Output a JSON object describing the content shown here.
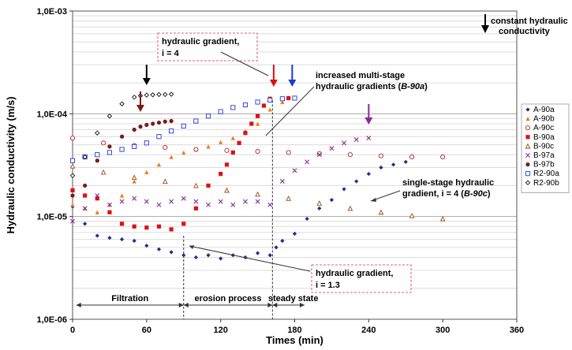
{
  "chart_data": {
    "type": "scatter",
    "x_axis": {
      "label": "Times (min)",
      "range": [
        0,
        360
      ],
      "ticks": [
        0,
        60,
        120,
        180,
        240,
        300,
        360
      ],
      "tick_labels": [
        "0",
        "60",
        "120",
        "180",
        "240",
        "300",
        "360"
      ]
    },
    "y_axis": {
      "label": "Hydraulic conductivity (m/s)",
      "scale": "log",
      "range": [
        1e-06,
        0.001
      ],
      "ticks": [
        1e-06,
        1e-05,
        0.0001,
        0.001
      ],
      "tick_labels": [
        "1,0E-06",
        "1,0E-05",
        "1,0E-04",
        "1,0E-03"
      ]
    },
    "grid": "horizontal",
    "legend_position": "right",
    "series": [
      {
        "name": "A-90a",
        "color": "#1f2f8f",
        "marker": "diamond",
        "x": [
          0,
          10,
          20,
          30,
          40,
          50,
          60,
          70,
          80,
          90,
          100,
          110,
          120,
          130,
          140,
          150,
          160,
          165,
          170,
          180,
          190,
          200,
          210,
          220,
          230,
          240,
          250,
          260,
          270
        ],
        "y": [
          1.25e-05,
          8.5e-06,
          6.5e-06,
          6.2e-06,
          6e-06,
          5.8e-06,
          5.2e-06,
          4.8e-06,
          4.5e-06,
          4.2e-06,
          4e-06,
          4.2e-06,
          3.9e-06,
          4.2e-06,
          4e-06,
          4.4e-06,
          4.2e-06,
          5e-06,
          5.8e-06,
          6.8e-06,
          9.5e-06,
          1.2e-05,
          1.45e-05,
          1.85e-05,
          2.2e-05,
          2.6e-05,
          3e-05,
          3.2e-05,
          3.4e-05
        ]
      },
      {
        "name": "A-90b",
        "color": "#f07a10",
        "marker": "triangle",
        "x": [
          0,
          10,
          20,
          30,
          40,
          50,
          60,
          70,
          80,
          90,
          100,
          110,
          120,
          130,
          140,
          150,
          160,
          170
        ],
        "y": [
          1.3e-05,
          1.2e-05,
          1.1e-05,
          1.3e-05,
          1.6e-05,
          2.2e-05,
          2.7e-05,
          3.2e-05,
          3.8e-05,
          4.2e-05,
          4.5e-05,
          4.8e-05,
          5.3e-05,
          5.8e-05,
          6.8e-05,
          8e-05,
          0.00011,
          0.00013
        ]
      },
      {
        "name": "A-90c",
        "color": "#b82020",
        "marker": "circle",
        "x": [
          0,
          25,
          50,
          75,
          100,
          125,
          150,
          175,
          200,
          225,
          250,
          275,
          300
        ],
        "y": [
          5.8e-05,
          5.2e-05,
          4.9e-05,
          4.7e-05,
          4.5e-05,
          4.4e-05,
          4.3e-05,
          4.2e-05,
          4.1e-05,
          4e-05,
          3.9e-05,
          3.8e-05,
          3.8e-05
        ]
      },
      {
        "name": "B-90a",
        "color": "#e01010",
        "marker": "square",
        "x": [
          0,
          10,
          20,
          30,
          40,
          50,
          60,
          70,
          80,
          90,
          100,
          110,
          120,
          125,
          130,
          135,
          140,
          145,
          150,
          155,
          160,
          170,
          175
        ],
        "y": [
          1.8e-05,
          1.6e-05,
          1.5e-05,
          1.1e-05,
          8.5e-06,
          8e-06,
          7.8e-06,
          8e-06,
          7.5e-06,
          8.5e-06,
          1.2e-05,
          2e-05,
          2.6e-05,
          3.2e-05,
          4.2e-05,
          5.2e-05,
          6.5e-05,
          8e-05,
          9.5e-05,
          0.00012,
          0.00014,
          0.00014,
          0.000142
        ]
      },
      {
        "name": "B-90c",
        "color": "#9a4a10",
        "marker": "triangle-open",
        "x": [
          0,
          25,
          50,
          75,
          100,
          125,
          150,
          175,
          200,
          225,
          250,
          275,
          300
        ],
        "y": [
          3.1e-05,
          2.7e-05,
          2.4e-05,
          2.2e-05,
          2e-05,
          1.8e-05,
          1.65e-05,
          1.5e-05,
          1.35e-05,
          1.2e-05,
          1.1e-05,
          1.02e-05,
          9.5e-06
        ]
      },
      {
        "name": "B-97a",
        "color": "#8a2a9a",
        "marker": "x",
        "x": [
          0,
          10,
          20,
          30,
          40,
          50,
          60,
          70,
          80,
          90,
          100,
          110,
          120,
          130,
          140,
          150,
          160,
          170,
          180,
          190,
          200,
          210,
          220,
          230,
          240
        ],
        "y": [
          9e-06,
          1.2e-05,
          1.6e-05,
          1.3e-05,
          1.4e-05,
          1.5e-05,
          1.4e-05,
          1.3e-05,
          1.4e-05,
          1.5e-05,
          1.4e-05,
          1.3e-05,
          1.4e-05,
          1.3e-05,
          1.4e-05,
          1.4e-05,
          1.3e-05,
          2.2e-05,
          2.8e-05,
          3.4e-05,
          4e-05,
          4.6e-05,
          5.2e-05,
          5.6e-05,
          5.8e-05
        ]
      },
      {
        "name": "B-97b",
        "color": "#7a1a1a",
        "marker": "circle-filled",
        "x": [
          0,
          10,
          20,
          30,
          40,
          50,
          55,
          60,
          65,
          70,
          75,
          80
        ],
        "y": [
          1.6e-05,
          2e-05,
          3.5e-05,
          4.8e-05,
          6e-05,
          7e-05,
          7.5e-05,
          7.8e-05,
          8e-05,
          8.2e-05,
          8.4e-05,
          8.5e-05
        ]
      },
      {
        "name": "R2-90a",
        "color": "#1a3ad0",
        "marker": "square-open",
        "x": [
          0,
          10,
          20,
          30,
          40,
          50,
          60,
          70,
          80,
          90,
          100,
          110,
          120,
          130,
          140,
          150,
          160,
          170,
          180
        ],
        "y": [
          3.5e-05,
          3.8e-05,
          4e-05,
          4.2e-05,
          4.5e-05,
          4.8e-05,
          5.2e-05,
          6e-05,
          6.8e-05,
          7.6e-05,
          8.5e-05,
          9.5e-05,
          0.000105,
          0.000115,
          0.000122,
          0.00013,
          0.000136,
          0.00014,
          0.000142
        ]
      },
      {
        "name": "R2-90b",
        "color": "#111111",
        "marker": "diamond-open",
        "x": [
          0,
          10,
          20,
          30,
          40,
          50,
          55,
          60,
          65,
          70,
          75,
          80
        ],
        "y": [
          2.5e-05,
          3.8e-05,
          6.5e-05,
          9.5e-05,
          0.000125,
          0.000145,
          0.00015,
          0.000152,
          0.000153,
          0.000154,
          0.000154,
          0.000155
        ]
      }
    ],
    "annotations": {
      "hyd_gradient_4": [
        "hydraulic gradient,",
        "i = 4"
      ],
      "hyd_gradient_13": [
        "hydraulic gradient,",
        "i = 1.3"
      ],
      "increased_multi": [
        "increased multi-stage",
        "hydraulic gradients (",
        "B-90a",
        ")"
      ],
      "single_stage": [
        "single-stage hydraulic",
        "gradient, i = 4 (",
        "B-90c",
        ")"
      ],
      "constant": [
        "constant hydraulic",
        "conductivity"
      ],
      "phases": [
        "Filtration",
        "erosion process",
        "steady state"
      ]
    }
  }
}
